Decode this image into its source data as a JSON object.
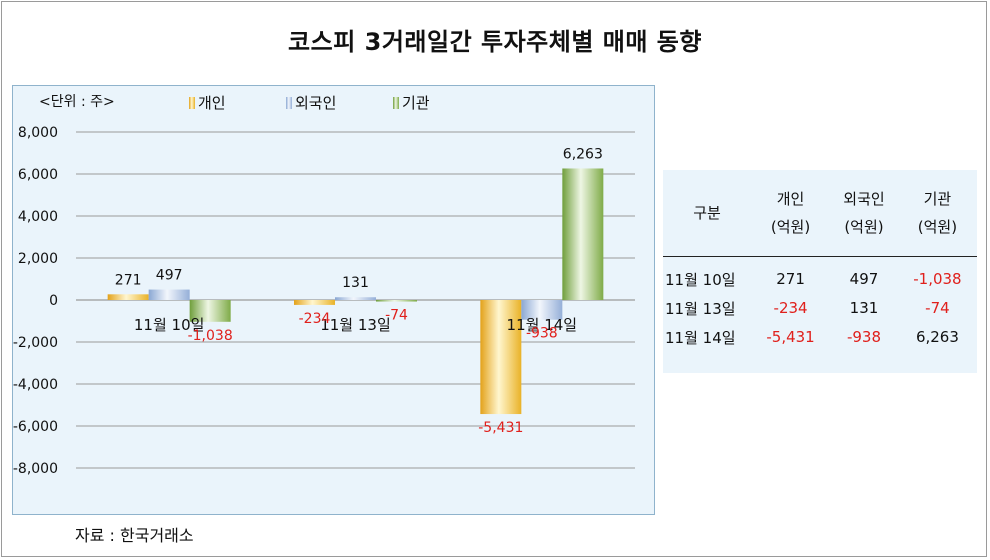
{
  "title": "코스피 3거래일간 투자주체별 매매 동향",
  "unit_label": "<단위 : 주>",
  "source": "자료 : 한국거래소",
  "colors": {
    "개인": "#f2c12e",
    "외국인": "#b3c6e4",
    "기관": "#8fba5b",
    "negative_text": "#e0201c"
  },
  "chart_data": {
    "type": "bar",
    "categories": [
      "11월 10일",
      "11월 13일",
      "11월 14일"
    ],
    "series": [
      {
        "name": "개인",
        "values": [
          271,
          -234,
          -5431
        ]
      },
      {
        "name": "외국인",
        "values": [
          497,
          131,
          -938
        ]
      },
      {
        "name": "기관",
        "values": [
          -1038,
          -74,
          6263
        ]
      }
    ],
    "data_labels": [
      [
        "271",
        "-234",
        "-5,431"
      ],
      [
        "497",
        "131",
        "-938"
      ],
      [
        "-1,038",
        "-74",
        "6,263"
      ]
    ],
    "yticks": [
      "8,000",
      "6,000",
      "4,000",
      "2,000",
      "0",
      "-2,000",
      "-4,000",
      "-6,000",
      "-8,000"
    ],
    "ylim": [
      -8000,
      8000
    ],
    "grid": true,
    "legend": "top"
  },
  "table": {
    "header_col0": "구분",
    "headers": [
      {
        "name": "개인",
        "unit": "(억원)"
      },
      {
        "name": "외국인",
        "unit": "(억원)"
      },
      {
        "name": "기관",
        "unit": "(억원)"
      }
    ],
    "rows": [
      {
        "label": "11월 10일",
        "values": [
          "271",
          "497",
          "-1,038"
        ]
      },
      {
        "label": "11월 13일",
        "values": [
          "-234",
          "131",
          "-74"
        ]
      },
      {
        "label": "11월 14일",
        "values": [
          "-5,431",
          "-938",
          "6,263"
        ]
      }
    ]
  }
}
